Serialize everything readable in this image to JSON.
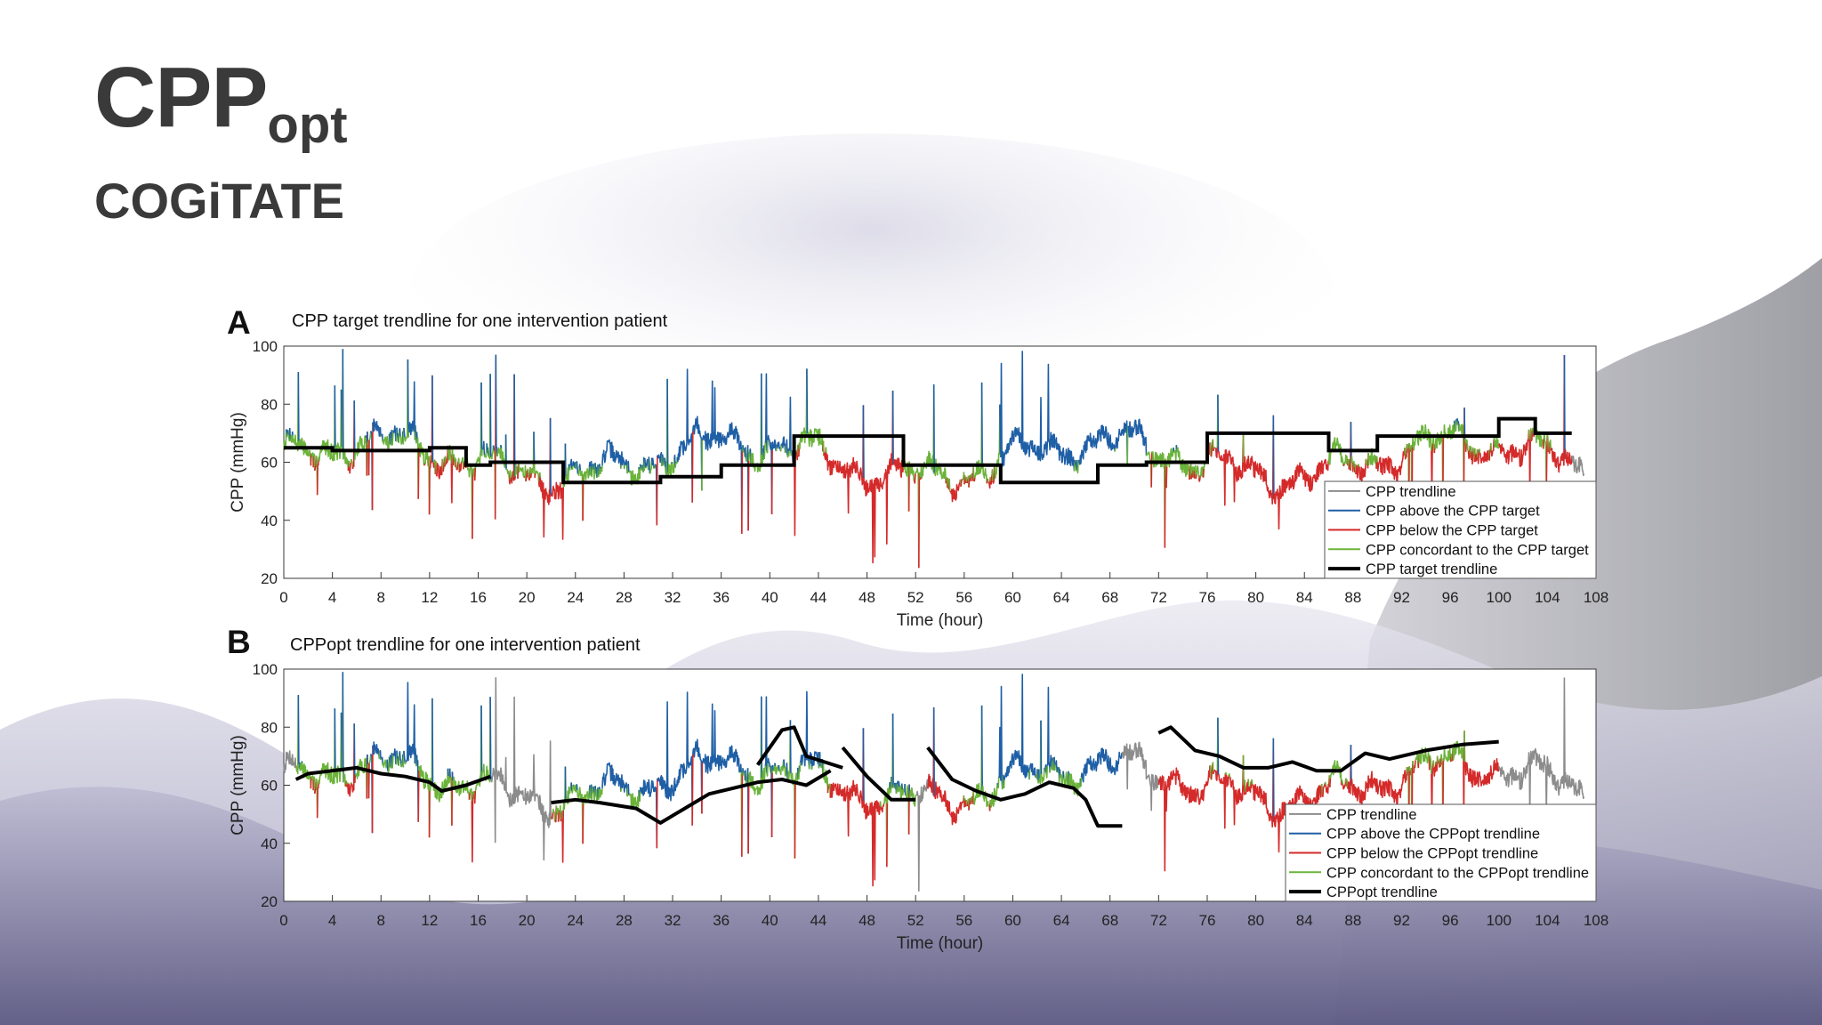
{
  "slide": {
    "title_main": "CPP",
    "title_sub": "opt",
    "subtitle": "COGiTATE"
  },
  "colors": {
    "trend": "#8c8c8c",
    "above": "#1f5fa6",
    "below": "#d42a2a",
    "concordant": "#6bb33a",
    "target": "#000000"
  },
  "chart_data": [
    {
      "panel": "A",
      "type": "line",
      "title": "CPP target trendline for one intervention patient",
      "xlabel": "Time (hour)",
      "ylabel": "CPP (mmHg)",
      "xlim": [
        0,
        108
      ],
      "ylim": [
        20,
        100
      ],
      "xticks": [
        0,
        4,
        8,
        12,
        16,
        20,
        24,
        28,
        32,
        36,
        40,
        44,
        48,
        52,
        56,
        60,
        64,
        68,
        72,
        76,
        80,
        84,
        88,
        92,
        96,
        100,
        104,
        108
      ],
      "yticks": [
        20,
        40,
        60,
        80,
        100
      ],
      "legend_position": "bottom-right",
      "legend": [
        {
          "label": "CPP trendline",
          "role": "trend"
        },
        {
          "label": "CPP above the CPP target",
          "role": "above"
        },
        {
          "label": "CPP below the CPP target",
          "role": "below"
        },
        {
          "label": "CPP concordant to the CPP target",
          "role": "concordant"
        },
        {
          "label": "CPP target trendline",
          "role": "target"
        }
      ],
      "signal_range": [
        0,
        107
      ],
      "target_steps": [
        [
          0,
          65
        ],
        [
          4,
          64
        ],
        [
          12,
          65
        ],
        [
          15,
          59
        ],
        [
          17,
          60
        ],
        [
          23,
          53
        ],
        [
          31,
          55
        ],
        [
          36,
          59
        ],
        [
          42,
          69
        ],
        [
          51,
          59
        ],
        [
          59,
          53
        ],
        [
          67,
          59
        ],
        [
          71,
          60
        ],
        [
          76,
          70
        ],
        [
          86,
          64
        ],
        [
          90,
          69
        ],
        [
          100,
          75
        ],
        [
          103,
          70
        ],
        [
          106,
          70
        ]
      ],
      "target_end": 106
    },
    {
      "panel": "B",
      "type": "line",
      "title": "CPPopt trendline for one intervention patient",
      "xlabel": "Time (hour)",
      "ylabel": "CPP (mmHg)",
      "xlim": [
        0,
        108
      ],
      "ylim": [
        20,
        100
      ],
      "xticks": [
        0,
        4,
        8,
        12,
        16,
        20,
        24,
        28,
        32,
        36,
        40,
        44,
        48,
        52,
        56,
        60,
        64,
        68,
        72,
        76,
        80,
        84,
        88,
        92,
        96,
        100,
        104,
        108
      ],
      "yticks": [
        20,
        40,
        60,
        80,
        100
      ],
      "legend_position": "bottom-right",
      "legend": [
        {
          "label": "CPP trendline",
          "role": "trend"
        },
        {
          "label": "CPP above the CPPopt trendline",
          "role": "above"
        },
        {
          "label": "CPP below the CPPopt trendline",
          "role": "below"
        },
        {
          "label": "CPP concordant to the CPPopt trendline",
          "role": "concordant"
        },
        {
          "label": "CPPopt trendline",
          "role": "target"
        }
      ],
      "signal_range": [
        0,
        107
      ],
      "cppopt_segments": [
        [
          [
            1,
            62
          ],
          [
            2,
            64
          ],
          [
            4,
            65
          ],
          [
            6,
            66
          ],
          [
            8,
            64
          ],
          [
            10,
            63
          ],
          [
            12,
            61
          ],
          [
            13,
            58
          ],
          [
            15,
            60
          ],
          [
            17,
            63
          ]
        ],
        [
          [
            22,
            54
          ],
          [
            24,
            55
          ],
          [
            26,
            54
          ],
          [
            29,
            52
          ],
          [
            31,
            47
          ],
          [
            33,
            52
          ],
          [
            35,
            57
          ],
          [
            37,
            59
          ],
          [
            39,
            61
          ],
          [
            41,
            62
          ],
          [
            43,
            60
          ],
          [
            45,
            65
          ]
        ],
        [
          [
            39,
            67
          ],
          [
            41,
            79
          ],
          [
            42,
            80
          ],
          [
            43,
            70
          ],
          [
            46,
            66
          ]
        ],
        [
          [
            46,
            73
          ],
          [
            48,
            63
          ],
          [
            50,
            55
          ],
          [
            52,
            55
          ]
        ],
        [
          [
            53,
            73
          ],
          [
            55,
            62
          ],
          [
            57,
            58
          ],
          [
            59,
            55
          ],
          [
            61,
            57
          ],
          [
            63,
            61
          ],
          [
            65,
            59
          ],
          [
            66,
            55
          ],
          [
            67,
            46
          ],
          [
            69,
            46
          ]
        ],
        [
          [
            72,
            78
          ],
          [
            73,
            80
          ],
          [
            75,
            72
          ],
          [
            77,
            70
          ],
          [
            79,
            66
          ],
          [
            81,
            66
          ],
          [
            83,
            68
          ],
          [
            85,
            65
          ],
          [
            87,
            65
          ],
          [
            89,
            71
          ],
          [
            91,
            69
          ],
          [
            94,
            72
          ],
          [
            97,
            74
          ],
          [
            100,
            75
          ]
        ]
      ]
    }
  ]
}
